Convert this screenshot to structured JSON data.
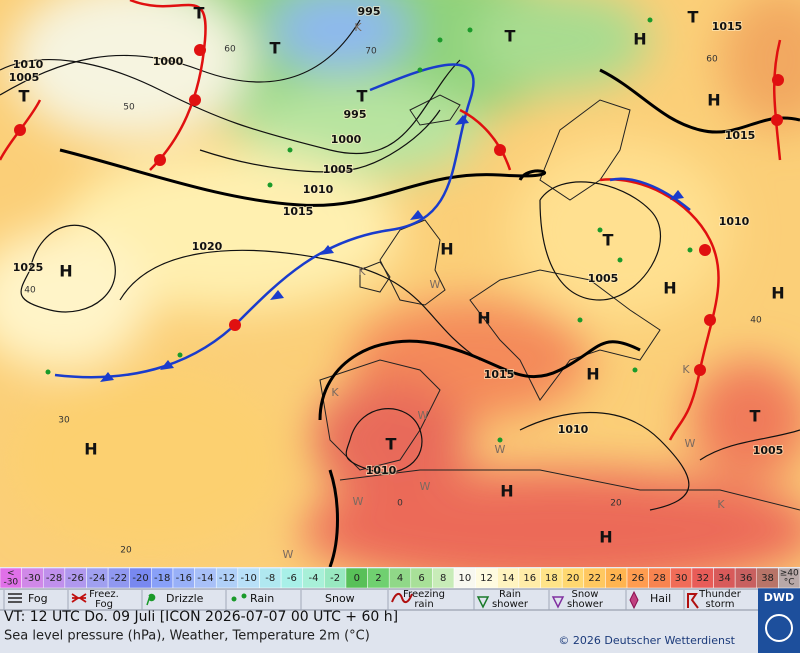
{
  "map": {
    "pressure_labels": [
      "995",
      "1010",
      "1005",
      "1000",
      "995",
      "1000",
      "1005",
      "1010",
      "1015",
      "1020",
      "1025",
      "1015",
      "1015",
      "1010",
      "1005",
      "1015",
      "1010",
      "1010",
      "1005"
    ],
    "centers": [
      "T",
      "T",
      "T",
      "T",
      "T",
      "H",
      "T",
      "H",
      "H",
      "H",
      "T",
      "H",
      "H",
      "H",
      "H",
      "H",
      "T",
      "T",
      "H",
      "H"
    ],
    "temperature_labels": [
      "60",
      "70",
      "50",
      "40",
      "30",
      "20",
      "0",
      "20",
      "40",
      "60"
    ],
    "air_mass_labels": [
      "K",
      "K",
      "W",
      "K",
      "W",
      "W",
      "W",
      "W",
      "K",
      "W",
      "K",
      "W"
    ]
  },
  "legend": {
    "scale": [
      {
        "label": [
          "<",
          "-30"
        ],
        "color": "#e070e8"
      },
      {
        "label": "-30",
        "color": "#d088e8"
      },
      {
        "label": "-28",
        "color": "#c090ec"
      },
      {
        "label": "-26",
        "color": "#b098ee"
      },
      {
        "label": "-24",
        "color": "#a0a0f0"
      },
      {
        "label": "-22",
        "color": "#9098f0"
      },
      {
        "label": "-20",
        "color": "#7888f0"
      },
      {
        "label": "-18",
        "color": "#88a0f8"
      },
      {
        "label": "-16",
        "color": "#98b0f8"
      },
      {
        "label": "-14",
        "color": "#a8c0f8"
      },
      {
        "label": "-12",
        "color": "#b0d0f8"
      },
      {
        "label": "-10",
        "color": "#b8e0f8"
      },
      {
        "label": "-8",
        "color": "#b0e8f0"
      },
      {
        "label": "-6",
        "color": "#a8f0e8"
      },
      {
        "label": "-4",
        "color": "#a8f0d8"
      },
      {
        "label": "-2",
        "color": "#98e8c0"
      },
      {
        "label": "0",
        "color": "#58c058"
      },
      {
        "label": "2",
        "color": "#70d070"
      },
      {
        "label": "4",
        "color": "#90d888"
      },
      {
        "label": "6",
        "color": "#a8e098"
      },
      {
        "label": "8",
        "color": "#c8ecb8"
      },
      {
        "label": "10",
        "color": "#f8f8f0"
      },
      {
        "label": "12",
        "color": "#fffbe0"
      },
      {
        "label": "14",
        "color": "#fff4c0"
      },
      {
        "label": "16",
        "color": "#ffec a8"
      },
      {
        "label": "18",
        "color": "#ffe488"
      },
      {
        "label": "20",
        "color": "#ffd870"
      },
      {
        "label": "22",
        "color": "#ffc860"
      },
      {
        "label": "24",
        "color": "#ffb450"
      },
      {
        "label": "26",
        "color": "#ff9c50"
      },
      {
        "label": "28",
        "color": "#f88450"
      },
      {
        "label": "30",
        "color": "#f06c58"
      },
      {
        "label": "32",
        "color": "#e85c58"
      },
      {
        "label": "34",
        "color": "#d85a5a"
      },
      {
        "label": "36",
        "color": "#c86060"
      },
      {
        "label": "38",
        "color": "#b87468"
      },
      {
        "label": [
          "≥40",
          "°C"
        ],
        "color": "#b8a8a8"
      }
    ],
    "weather": [
      {
        "label": [
          "Fog"
        ]
      },
      {
        "label": [
          "Freez.",
          "Fog"
        ]
      },
      {
        "label": [
          "Drizzle"
        ]
      },
      {
        "label": [
          "Rain"
        ]
      },
      {
        "label": [
          "Snow"
        ]
      },
      {
        "label": [
          "Freezing",
          "rain"
        ]
      },
      {
        "label": [
          "Rain",
          "shower"
        ]
      },
      {
        "label": [
          "Snow",
          "shower"
        ]
      },
      {
        "label": [
          "Hail"
        ]
      },
      {
        "label": [
          "Thunder",
          "storm"
        ]
      }
    ]
  },
  "footer": {
    "valid_time": "VT: 12 UTC Do.  09 Juli [ICON 2026-07-07  00 UTC + 60 h]",
    "description": "Sea level pressure (hPa), Weather, Temperature 2m (°C)",
    "copyright": "© 2026 Deutscher Wetterdienst",
    "logo": "DWD"
  }
}
